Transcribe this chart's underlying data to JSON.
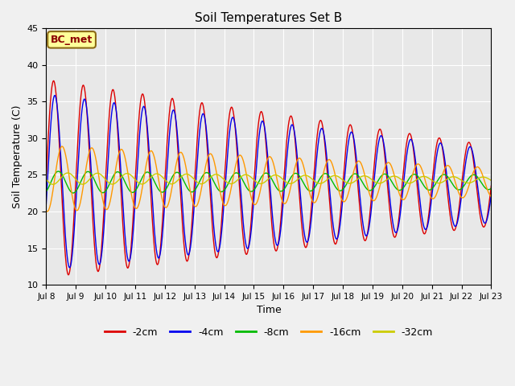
{
  "title": "Soil Temperatures Set B",
  "xlabel": "Time",
  "ylabel": "Soil Temperature (C)",
  "ylim": [
    10,
    45
  ],
  "xlim": [
    0,
    360
  ],
  "annotation": "BC_met",
  "fig_bg": "#f0f0f0",
  "plot_bg": "#e8e8e8",
  "series": [
    {
      "label": "-2cm",
      "color": "#dd0000",
      "amp_start": 13.5,
      "amp_end": 5.5,
      "phase": 0.0,
      "mean": 24.5,
      "mean_drift": -1.0
    },
    {
      "label": "-4cm",
      "color": "#0000ee",
      "amp_start": 12.0,
      "amp_end": 5.0,
      "phase": 0.25,
      "mean": 24.0,
      "mean_drift": -0.5
    },
    {
      "label": "-8cm",
      "color": "#00bb00",
      "amp_start": 1.5,
      "amp_end": 1.0,
      "phase": 1.0,
      "mean": 24.0,
      "mean_drift": 0.0
    },
    {
      "label": "-16cm",
      "color": "#ff9900",
      "amp_start": 4.5,
      "amp_end": 2.0,
      "phase": 1.8,
      "mean": 24.5,
      "mean_drift": -0.5
    },
    {
      "label": "-32cm",
      "color": "#cccc00",
      "amp_start": 0.8,
      "amp_end": 0.4,
      "phase": 3.0,
      "mean": 24.5,
      "mean_drift": -0.2
    }
  ],
  "tick_labels": [
    "Jul 8",
    "Jul 9",
    "Jul 10",
    "Jul 11",
    "Jul 12",
    "Jul 13",
    "Jul 14",
    "Jul 15",
    "Jul 16",
    "Jul 17",
    "Jul 18",
    "Jul 19",
    "Jul 20",
    "Jul 21",
    "Jul 22",
    "Jul 23"
  ],
  "tick_positions": [
    0,
    24,
    48,
    72,
    96,
    120,
    144,
    168,
    192,
    216,
    240,
    264,
    288,
    312,
    336,
    360
  ],
  "period_hours": 24,
  "total_hours": 360,
  "n_points": 2160
}
